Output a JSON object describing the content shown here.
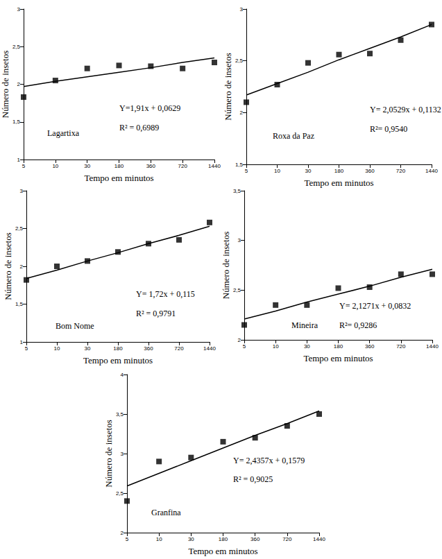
{
  "chart_data": [
    {
      "type": "scatter",
      "xlabel": "Tempo em minutos",
      "ylabel": "Número de insetos",
      "categories": [
        "5",
        "10",
        "30",
        "180",
        "360",
        "720",
        "1440"
      ],
      "ylim": [
        1,
        3
      ],
      "yticks": [
        1,
        {
          "value": 1.5,
          "label": "1,5"
        },
        2,
        {
          "value": 2.5,
          "label": "2,5"
        },
        3
      ],
      "grid": false,
      "annotations": [
        "Y=1,91x + 0,0629",
        "R² = 0,6989",
        "Lagartixa"
      ],
      "series": [
        {
          "type": "scatter",
          "marker": "square",
          "color": "#000000",
          "values": [
            1.83,
            2.05,
            2.21,
            2.25,
            2.24,
            2.21,
            2.29
          ]
        },
        {
          "type": "line",
          "line_style": "solid",
          "color": "#000000",
          "values": [
            1.97,
            2.04,
            2.1,
            2.16,
            2.22,
            2.29,
            2.35
          ]
        }
      ]
    },
    {
      "type": "scatter",
      "xlabel": "Tempo em minutos",
      "ylabel": "Número de insetos",
      "categories": [
        "5",
        "10",
        "30",
        "180",
        "360",
        "720",
        "1440"
      ],
      "ylim": [
        1.5,
        3
      ],
      "yticks": [
        {
          "value": 1.5,
          "label": "1,5"
        },
        2,
        {
          "value": 2.5,
          "label": "2,5"
        },
        3
      ],
      "grid": false,
      "annotations": [
        "Y= 2,0529x + 0,1132",
        "R²= 0,9540",
        "Roxa da Paz"
      ],
      "series": [
        {
          "type": "scatter",
          "marker": "square",
          "color": "#000000",
          "values": [
            2.1,
            2.27,
            2.48,
            2.56,
            2.57,
            2.7,
            2.85
          ]
        },
        {
          "type": "line",
          "line_style": "solid",
          "color": "#000000",
          "values": [
            2.17,
            2.28,
            2.39,
            2.51,
            2.62,
            2.73,
            2.85
          ]
        }
      ]
    },
    {
      "type": "scatter",
      "xlabel": "Tempo em minutos",
      "ylabel": "Número de insetos",
      "categories": [
        "5",
        "10",
        "30",
        "180",
        "360",
        "720",
        "1440"
      ],
      "ylim": [
        1,
        3
      ],
      "yticks": [
        1,
        {
          "value": 1.5,
          "label": "1,5"
        },
        2,
        {
          "value": 2.5,
          "label": "2,5"
        },
        3
      ],
      "grid": false,
      "annotations": [
        "Y= 1,72x + 0,115",
        "R² = 0,9791",
        "Bom Nome"
      ],
      "series": [
        {
          "type": "scatter",
          "marker": "square",
          "color": "#000000",
          "values": [
            1.82,
            2.0,
            2.07,
            2.19,
            2.3,
            2.35,
            2.58
          ]
        },
        {
          "type": "line",
          "line_style": "solid",
          "color": "#000000",
          "values": [
            1.84,
            1.95,
            2.07,
            2.18,
            2.3,
            2.41,
            2.53
          ]
        }
      ]
    },
    {
      "type": "scatter",
      "xlabel": "Tempo em minutos",
      "ylabel": "Número de insetos",
      "categories": [
        "5",
        "10",
        "30",
        "180",
        "360",
        "720",
        "1440"
      ],
      "ylim": [
        2,
        3.5
      ],
      "yticks": [
        2,
        {
          "value": 2.5,
          "label": "2,5"
        },
        3,
        {
          "value": 3.5,
          "label": "3,5"
        }
      ],
      "grid": false,
      "annotations": [
        "Y= 2,1271x + 0,0832",
        "R²= 0,9286",
        "Mineira"
      ],
      "series": [
        {
          "type": "scatter",
          "marker": "square",
          "color": "#000000",
          "values": [
            2.15,
            2.35,
            2.35,
            2.52,
            2.53,
            2.66,
            2.66
          ]
        },
        {
          "type": "line",
          "line_style": "solid",
          "color": "#000000",
          "values": [
            2.21,
            2.29,
            2.38,
            2.46,
            2.54,
            2.63,
            2.71
          ]
        }
      ]
    },
    {
      "type": "scatter",
      "xlabel": "Tempo em minutos",
      "ylabel": "Número de insetos",
      "categories": [
        "5",
        "10",
        "30",
        "180",
        "360",
        "720",
        "1440"
      ],
      "ylim": [
        2,
        4
      ],
      "yticks": [
        2,
        {
          "value": 2.5,
          "label": "2,5"
        },
        3,
        {
          "value": 3.5,
          "label": "3,5"
        },
        4
      ],
      "grid": false,
      "annotations": [
        "Y= 2,4357x + 0,1579",
        "R² = 0,9025",
        "Granfina"
      ],
      "series": [
        {
          "type": "scatter",
          "marker": "square",
          "color": "#000000",
          "values": [
            2.4,
            2.9,
            2.95,
            3.15,
            3.2,
            3.35,
            3.5
          ]
        },
        {
          "type": "line",
          "line_style": "solid",
          "color": "#000000",
          "values": [
            2.59,
            2.75,
            2.91,
            3.07,
            3.23,
            3.38,
            3.54
          ]
        }
      ]
    }
  ]
}
